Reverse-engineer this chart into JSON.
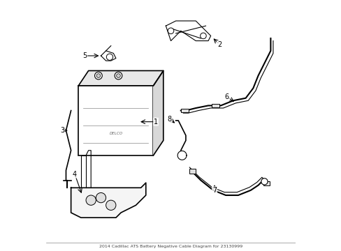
{
  "title": "2014 Cadillac ATS Battery Negative Cable Diagram for 23130999",
  "background_color": "#ffffff",
  "line_color": "#000000",
  "label_color": "#000000",
  "fig_width": 4.89,
  "fig_height": 3.6,
  "dpi": 100,
  "note_text": "2014 Cadillac ATS Battery Negative Cable Diagram for 23130999"
}
